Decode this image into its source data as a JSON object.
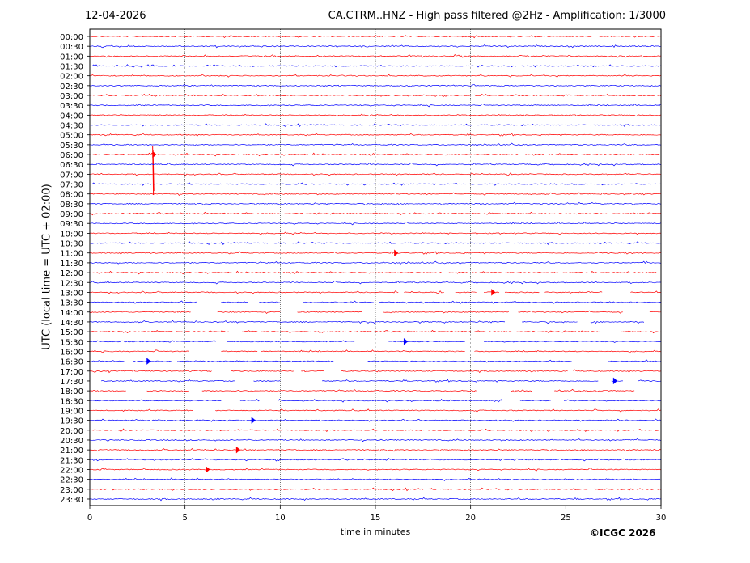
{
  "header": {
    "date": "12-04-2026",
    "title": "CA.CTRM..HNZ - High pass filtered @2Hz - Amplification: 1/3000"
  },
  "footer": {
    "copyright": "©ICGC 2026"
  },
  "chart_data": {
    "type": "line",
    "title": "CA.CTRM..HNZ - High pass filtered @2Hz - Amplification: 1/3000",
    "xlabel": "time in minutes",
    "ylabel": "UTC (local time = UTC + 02:00)",
    "xlim": [
      0,
      30
    ],
    "x_ticks": [
      0,
      5,
      10,
      15,
      20,
      25,
      30
    ],
    "grid": "vertical dotted lines at 5, 10, 15, 20, 25",
    "trace_colors": [
      "#ff0000",
      "#0000ff"
    ],
    "rows": [
      "00:00",
      "00:30",
      "01:00",
      "01:30",
      "02:00",
      "02:30",
      "03:00",
      "03:30",
      "04:00",
      "04:30",
      "05:00",
      "05:30",
      "06:00",
      "06:30",
      "07:00",
      "07:30",
      "08:00",
      "08:30",
      "09:00",
      "09:30",
      "10:00",
      "10:30",
      "11:00",
      "11:30",
      "12:00",
      "12:30",
      "13:00",
      "13:30",
      "14:00",
      "14:30",
      "15:00",
      "15:30",
      "16:00",
      "16:30",
      "17:00",
      "17:30",
      "18:00",
      "18:30",
      "19:00",
      "19:30",
      "20:00",
      "20:30",
      "21:00",
      "21:30",
      "22:00",
      "22:30",
      "23:00",
      "23:30"
    ],
    "events": [
      {
        "row": "06:00",
        "minute": 3.3,
        "description": "large spike spanning 06:00-08:00"
      },
      {
        "row": "11:00",
        "minute": 16.0
      },
      {
        "row": "13:00",
        "minute": 21.1
      },
      {
        "row": "15:30",
        "minute": 16.5
      },
      {
        "row": "16:30",
        "minute": 3.0
      },
      {
        "row": "17:30",
        "minute": 27.5
      },
      {
        "row": "22:00",
        "minute": 6.1
      },
      {
        "row": "21:00",
        "minute": 7.7
      },
      {
        "row": "19:30",
        "minute": 8.5
      }
    ],
    "gaps": [
      {
        "row": "13:00",
        "minutes": [
          [
            16.2,
            16.5
          ],
          [
            18.6,
            19.2
          ],
          [
            20.3,
            20.7
          ],
          [
            21.5,
            21.8
          ],
          [
            23.6,
            23.9
          ],
          [
            26.9,
            28.4
          ]
        ]
      },
      {
        "row": "13:30",
        "minutes": [
          [
            5.6,
            6.9
          ],
          [
            8.3,
            8.9
          ],
          [
            10.0,
            11.2
          ],
          [
            14.9,
            15.2
          ]
        ]
      },
      {
        "row": "14:00",
        "minutes": [
          [
            5.3,
            6.7
          ],
          [
            10.0,
            10.9
          ],
          [
            14.3,
            15.4
          ],
          [
            22.0,
            22.5
          ],
          [
            28.0,
            29.4
          ]
        ]
      },
      {
        "row": "14:30",
        "minutes": [
          [
            21.8,
            22.7
          ],
          [
            25.6,
            26.3
          ],
          [
            29.1,
            30.0
          ]
        ]
      },
      {
        "row": "15:00",
        "minutes": [
          [
            7.3,
            8.0
          ],
          [
            20.0,
            20.2
          ],
          [
            26.8,
            27.9
          ]
        ]
      },
      {
        "row": "15:30",
        "minutes": [
          [
            6.6,
            7.2
          ],
          [
            13.9,
            15.7
          ],
          [
            19.7,
            20.7
          ]
        ]
      },
      {
        "row": "16:00",
        "minutes": [
          [
            5.2,
            6.9
          ],
          [
            8.8,
            9.0
          ],
          [
            19.7,
            20.2
          ]
        ]
      },
      {
        "row": "16:30",
        "minutes": [
          [
            1.8,
            2.3
          ],
          [
            4.3,
            4.6
          ],
          [
            12.8,
            14.6
          ],
          [
            25.3,
            27.2
          ]
        ]
      },
      {
        "row": "17:00",
        "minutes": [
          [
            6.4,
            7.4
          ],
          [
            10.7,
            11.1
          ],
          [
            12.3,
            13.2
          ],
          [
            25.1,
            25.4
          ]
        ]
      },
      {
        "row": "17:30",
        "minutes": [
          [
            0.0,
            0.6
          ],
          [
            7.6,
            8.6
          ],
          [
            10.0,
            12.2
          ],
          [
            26.7,
            27.4
          ],
          [
            28.0,
            28.8
          ]
        ]
      },
      {
        "row": "18:00",
        "minutes": [
          [
            1.9,
            3.0
          ],
          [
            5.2,
            5.9
          ],
          [
            20.3,
            22.1
          ],
          [
            23.2,
            24.4
          ],
          [
            28.6,
            30.0
          ]
        ]
      },
      {
        "row": "18:30",
        "minutes": [
          [
            6.9,
            7.9
          ],
          [
            8.9,
            9.9
          ],
          [
            21.6,
            22.6
          ],
          [
            24.2,
            24.9
          ]
        ]
      },
      {
        "row": "19:00",
        "minutes": [
          [
            5.4,
            6.6
          ]
        ]
      }
    ]
  }
}
